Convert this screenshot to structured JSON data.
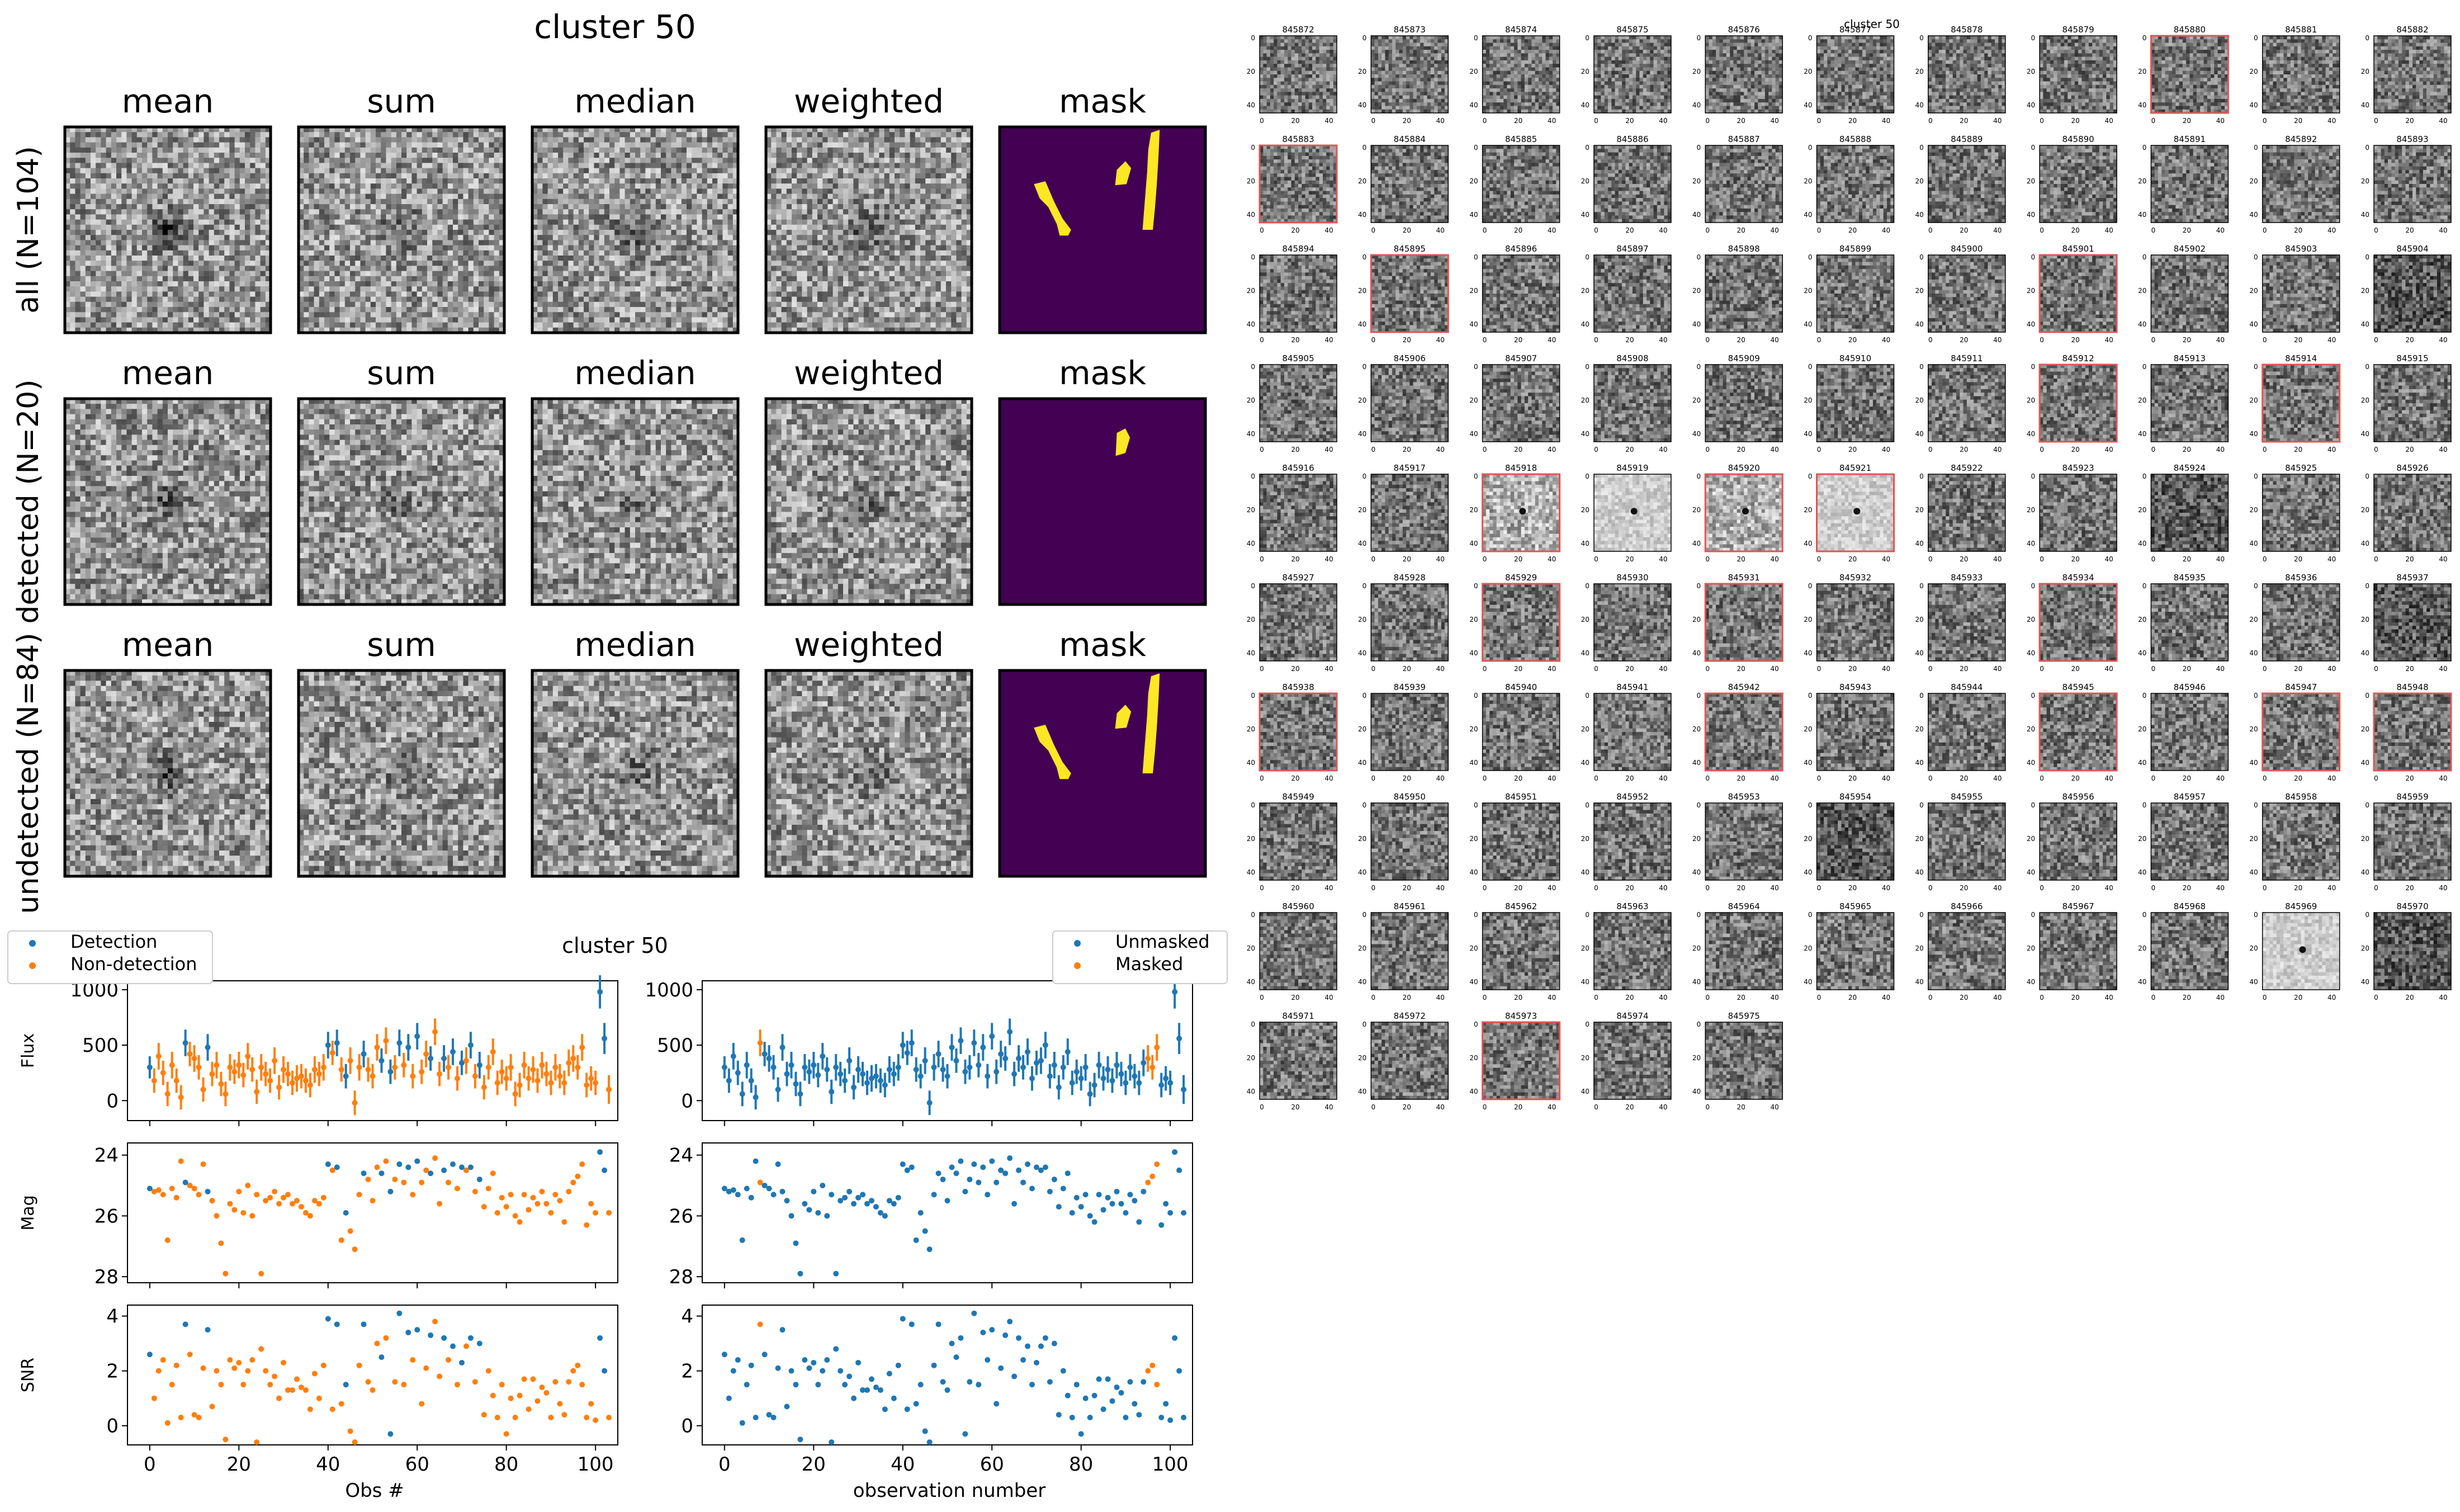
{
  "stacks": {
    "title": "cluster 50",
    "column_titles": [
      "mean",
      "sum",
      "median",
      "weighted",
      "mask"
    ],
    "row_labels": [
      "all (N=104)",
      "detected (N=20)",
      "undetected (N=84)"
    ],
    "colors": {
      "mask_background": "#440154",
      "mask_foreground": "#fde725",
      "frame": "#000000"
    }
  },
  "cutout_grid": {
    "title": "cluster 50",
    "columns": 11,
    "first_id": 845872,
    "last_id": 845975,
    "highlighted_ids": [
      845880,
      845883,
      845895,
      845901,
      845912,
      845914,
      845918,
      845920,
      845921,
      845929,
      845931,
      845934,
      845938,
      845942,
      845945,
      845947,
      845948,
      845973
    ],
    "y_tick_labels": [
      "0",
      "20",
      "40"
    ],
    "x_tick_labels": [
      "0",
      "20",
      "40"
    ],
    "colors": {
      "highlight_border": "#e05555"
    }
  },
  "chart_data": [
    {
      "type": "scatter",
      "title": "cluster 50",
      "xlabel": "Obs #",
      "panels": [
        {
          "ylabel": "Flux",
          "ylim": [
            -180,
            1080
          ],
          "yticks": [
            0,
            500,
            1000
          ]
        },
        {
          "ylabel": "Mag",
          "ylim": [
            28.2,
            23.6
          ],
          "yticks": [
            24,
            26,
            28
          ]
        },
        {
          "ylabel": "SNR",
          "ylim": [
            -0.7,
            4.4
          ],
          "yticks": [
            0,
            2,
            4
          ]
        }
      ],
      "xlim": [
        -5,
        105
      ],
      "xticks": [
        0,
        20,
        40,
        60,
        80,
        100
      ],
      "legend": {
        "position": "top-left-outside",
        "entries": [
          {
            "name": "Detection",
            "color": "#1f77b4"
          },
          {
            "name": "Non-detection",
            "color": "#ff7f0e"
          }
        ]
      },
      "detected_obs": [
        0,
        8,
        13,
        40,
        42,
        44,
        48,
        52,
        54,
        56,
        58,
        60,
        63,
        66,
        68,
        70,
        72,
        74,
        101,
        102
      ]
    },
    {
      "type": "scatter",
      "xlabel": "observation number",
      "panels": [
        {
          "ylabel": "",
          "ylim": [
            -180,
            1080
          ],
          "yticks": [
            0,
            500,
            1000
          ]
        },
        {
          "ylabel": "",
          "ylim": [
            28.2,
            23.6
          ],
          "yticks": [
            24,
            26,
            28
          ]
        },
        {
          "ylabel": "",
          "ylim": [
            -0.7,
            4.4
          ],
          "yticks": [
            0,
            2,
            4
          ]
        }
      ],
      "xlim": [
        -5,
        105
      ],
      "xticks": [
        0,
        20,
        40,
        60,
        80,
        100
      ],
      "legend": {
        "position": "top-right-outside",
        "entries": [
          {
            "name": "Unmasked",
            "color": "#1f77b4"
          },
          {
            "name": "Masked",
            "color": "#ff7f0e"
          }
        ]
      },
      "masked_obs": [
        8,
        95,
        96,
        97
      ]
    }
  ],
  "observations": {
    "obs": [
      0,
      1,
      2,
      3,
      4,
      5,
      6,
      7,
      8,
      9,
      10,
      11,
      12,
      13,
      14,
      15,
      16,
      17,
      18,
      19,
      20,
      21,
      22,
      23,
      24,
      25,
      26,
      27,
      28,
      29,
      30,
      31,
      32,
      33,
      34,
      35,
      36,
      37,
      38,
      39,
      40,
      41,
      42,
      43,
      44,
      45,
      46,
      47,
      48,
      49,
      50,
      51,
      52,
      53,
      54,
      55,
      56,
      57,
      58,
      59,
      60,
      61,
      62,
      63,
      64,
      65,
      66,
      67,
      68,
      69,
      70,
      71,
      72,
      73,
      74,
      75,
      76,
      77,
      78,
      79,
      80,
      81,
      82,
      83,
      84,
      85,
      86,
      87,
      88,
      89,
      90,
      91,
      92,
      93,
      94,
      95,
      96,
      97,
      98,
      99,
      100,
      101,
      102,
      103
    ],
    "flux": [
      300,
      180,
      400,
      250,
      60,
      320,
      180,
      30,
      520,
      420,
      380,
      300,
      100,
      480,
      240,
      320,
      150,
      60,
      300,
      260,
      320,
      230,
      400,
      280,
      80,
      300,
      240,
      180,
      360,
      120,
      280,
      240,
      160,
      200,
      220,
      180,
      140,
      280,
      240,
      300,
      500,
      430,
      520,
      280,
      220,
      360,
      -20,
      300,
      420,
      280,
      220,
      480,
      360,
      540,
      260,
      300,
      520,
      320,
      480,
      220,
      580,
      260,
      420,
      380,
      620,
      240,
      380,
      300,
      440,
      200,
      340,
      360,
      500,
      220,
      320,
      120,
      300,
      440,
      160,
      260,
      200,
      300,
      60,
      140,
      320,
      200,
      280,
      180,
      320,
      240,
      160,
      300,
      220,
      160,
      340,
      380,
      300,
      480,
      140,
      200,
      160,
      980,
      560,
      100
    ],
    "flux_err": [
      100,
      110,
      120,
      110,
      110,
      120,
      110,
      110,
      120,
      110,
      120,
      110,
      110,
      120,
      110,
      120,
      110,
      110,
      120,
      110,
      120,
      110,
      120,
      110,
      110,
      120,
      110,
      110,
      120,
      110,
      120,
      110,
      110,
      120,
      110,
      110,
      110,
      120,
      110,
      120,
      120,
      110,
      120,
      110,
      110,
      120,
      110,
      120,
      120,
      110,
      110,
      120,
      110,
      120,
      110,
      110,
      120,
      110,
      120,
      110,
      120,
      110,
      120,
      110,
      120,
      110,
      120,
      110,
      120,
      110,
      110,
      120,
      120,
      110,
      120,
      110,
      110,
      120,
      110,
      110,
      110,
      120,
      110,
      110,
      120,
      110,
      120,
      110,
      120,
      110,
      110,
      120,
      110,
      110,
      120,
      120,
      110,
      120,
      110,
      110,
      110,
      150,
      140,
      130
    ],
    "mag": [
      25.1,
      25.2,
      25.15,
      25.3,
      26.8,
      25.1,
      25.4,
      24.2,
      24.9,
      25.0,
      25.1,
      25.3,
      24.3,
      25.2,
      25.5,
      26.0,
      26.9,
      27.9,
      25.6,
      25.8,
      25.2,
      25.9,
      25.0,
      26.0,
      25.3,
      27.9,
      25.5,
      25.4,
      25.2,
      25.6,
      25.4,
      25.3,
      25.6,
      25.5,
      25.7,
      25.9,
      26.0,
      25.5,
      25.6,
      25.4,
      24.3,
      24.5,
      24.4,
      26.8,
      25.9,
      26.5,
      27.1,
      25.3,
      24.6,
      24.8,
      25.5,
      24.4,
      24.6,
      24.2,
      25.2,
      24.8,
      24.3,
      24.9,
      24.4,
      25.3,
      24.2,
      24.9,
      24.5,
      24.6,
      24.1,
      25.6,
      24.5,
      24.9,
      24.3,
      25.1,
      24.4,
      24.5,
      24.4,
      25.2,
      24.8,
      25.7,
      25.1,
      24.6,
      25.9,
      25.4,
      25.7,
      25.3,
      26.0,
      26.2,
      25.3,
      25.8,
      25.4,
      25.6,
      25.2,
      25.6,
      25.9,
      25.3,
      25.5,
      26.2,
      25.2,
      24.9,
      24.7,
      24.3,
      26.3,
      25.6,
      25.9,
      23.9,
      24.5,
      25.9
    ],
    "snr": [
      2.6,
      1.0,
      2.0,
      2.4,
      0.1,
      1.5,
      2.2,
      0.3,
      3.7,
      2.6,
      0.4,
      0.3,
      2.1,
      3.5,
      0.7,
      2.0,
      1.5,
      -0.5,
      2.4,
      2.1,
      2.3,
      1.5,
      2.0,
      2.4,
      -0.6,
      2.8,
      2.0,
      1.5,
      1.8,
      1.0,
      2.3,
      1.3,
      1.3,
      1.7,
      1.4,
      1.3,
      0.6,
      1.9,
      1.0,
      2.2,
      3.9,
      0.6,
      3.7,
      0.8,
      1.5,
      -0.2,
      -0.6,
      2.2,
      3.7,
      1.6,
      1.3,
      3.0,
      2.5,
      3.2,
      -0.3,
      1.6,
      4.1,
      1.5,
      3.4,
      2.4,
      3.5,
      0.8,
      2.1,
      3.3,
      3.8,
      1.8,
      3.2,
      2.4,
      2.9,
      1.5,
      2.3,
      2.9,
      3.2,
      1.6,
      3.0,
      0.4,
      2.0,
      1.1,
      0.3,
      1.5,
      -0.3,
      1.0,
      0.3,
      1.1,
      1.7,
      0.6,
      1.7,
      0.9,
      1.4,
      1.2,
      0.3,
      1.6,
      0.8,
      0.4,
      1.6,
      2.0,
      2.2,
      1.5,
      0.3,
      0.8,
      0.2,
      3.2,
      2.0,
      0.3
    ]
  }
}
